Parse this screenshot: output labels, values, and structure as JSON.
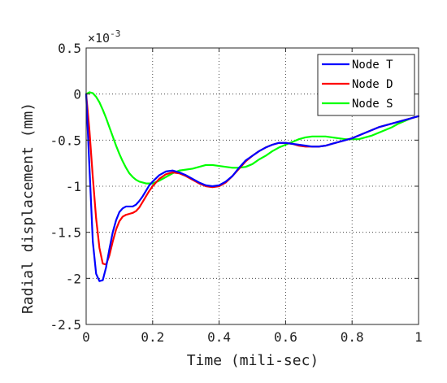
{
  "chart_data": {
    "type": "line",
    "title": "",
    "xlabel": "Time (mili-sec)",
    "ylabel": "Radial displacement (mm)",
    "y_exponent": {
      "base": "×10",
      "power": "-3"
    },
    "xlim": [
      0,
      1
    ],
    "ylim": [
      -2.5,
      0.5
    ],
    "x_ticks": [
      0,
      0.2,
      0.4,
      0.6,
      0.8,
      1
    ],
    "x_tick_labels": [
      "0",
      "0.2",
      "0.4",
      "0.6",
      "0.8",
      "1"
    ],
    "y_ticks": [
      0.5,
      0,
      -0.5,
      -1,
      -1.5,
      -2,
      -2.5
    ],
    "y_tick_labels": [
      "0.5",
      "0",
      "-0.5",
      "-1",
      "-1.5",
      "-2",
      "-2.5"
    ],
    "grid": true,
    "grid_style": "dotted",
    "legend_position": "top-right",
    "x": [
      0,
      0.01,
      0.02,
      0.03,
      0.04,
      0.05,
      0.06,
      0.07,
      0.08,
      0.09,
      0.1,
      0.11,
      0.12,
      0.13,
      0.14,
      0.15,
      0.16,
      0.17,
      0.18,
      0.19,
      0.2,
      0.22,
      0.24,
      0.26,
      0.28,
      0.3,
      0.32,
      0.34,
      0.36,
      0.38,
      0.4,
      0.42,
      0.44,
      0.46,
      0.48,
      0.5,
      0.52,
      0.54,
      0.56,
      0.58,
      0.6,
      0.62,
      0.64,
      0.66,
      0.68,
      0.7,
      0.72,
      0.74,
      0.76,
      0.78,
      0.8,
      0.82,
      0.84,
      0.86,
      0.88,
      0.9,
      0.92,
      0.94,
      0.96,
      0.98,
      1
    ],
    "series": [
      {
        "name": "Node T",
        "color": "#0000ff",
        "values": [
          0,
          -0.8,
          -1.6,
          -1.95,
          -2.03,
          -2.02,
          -1.88,
          -1.68,
          -1.5,
          -1.37,
          -1.28,
          -1.24,
          -1.22,
          -1.22,
          -1.22,
          -1.2,
          -1.16,
          -1.11,
          -1.05,
          -0.99,
          -0.95,
          -0.88,
          -0.84,
          -0.83,
          -0.85,
          -0.88,
          -0.92,
          -0.96,
          -0.99,
          -1.0,
          -0.99,
          -0.95,
          -0.89,
          -0.8,
          -0.72,
          -0.67,
          -0.62,
          -0.58,
          -0.55,
          -0.53,
          -0.53,
          -0.54,
          -0.55,
          -0.56,
          -0.57,
          -0.57,
          -0.56,
          -0.54,
          -0.52,
          -0.5,
          -0.48,
          -0.45,
          -0.42,
          -0.39,
          -0.36,
          -0.34,
          -0.32,
          -0.3,
          -0.28,
          -0.26,
          -0.24
        ]
      },
      {
        "name": "Node D",
        "color": "#ff0000",
        "values": [
          0,
          -0.4,
          -0.9,
          -1.35,
          -1.67,
          -1.84,
          -1.85,
          -1.75,
          -1.6,
          -1.47,
          -1.38,
          -1.33,
          -1.31,
          -1.3,
          -1.29,
          -1.27,
          -1.23,
          -1.17,
          -1.11,
          -1.05,
          -1.0,
          -0.92,
          -0.87,
          -0.85,
          -0.86,
          -0.89,
          -0.93,
          -0.97,
          -1.0,
          -1.01,
          -1.0,
          -0.96,
          -0.89,
          -0.81,
          -0.73,
          -0.67,
          -0.62,
          -0.58,
          -0.55,
          -0.53,
          -0.53,
          -0.54,
          -0.56,
          -0.57,
          -0.57,
          -0.57,
          -0.56,
          -0.54,
          -0.52,
          -0.5,
          -0.48,
          -0.45,
          -0.42,
          -0.39,
          -0.36,
          -0.34,
          -0.32,
          -0.3,
          -0.28,
          -0.26,
          -0.24
        ]
      },
      {
        "name": "Node S",
        "color": "#00ff00",
        "values": [
          0,
          0.02,
          0.01,
          -0.03,
          -0.09,
          -0.17,
          -0.26,
          -0.36,
          -0.46,
          -0.56,
          -0.65,
          -0.73,
          -0.8,
          -0.86,
          -0.9,
          -0.93,
          -0.95,
          -0.96,
          -0.97,
          -0.97,
          -0.97,
          -0.94,
          -0.9,
          -0.86,
          -0.83,
          -0.82,
          -0.81,
          -0.79,
          -0.77,
          -0.77,
          -0.78,
          -0.79,
          -0.8,
          -0.8,
          -0.79,
          -0.76,
          -0.71,
          -0.67,
          -0.62,
          -0.58,
          -0.55,
          -0.52,
          -0.49,
          -0.47,
          -0.46,
          -0.46,
          -0.46,
          -0.47,
          -0.48,
          -0.49,
          -0.49,
          -0.49,
          -0.47,
          -0.45,
          -0.42,
          -0.39,
          -0.36,
          -0.32,
          -0.29,
          -0.26,
          -0.24
        ]
      }
    ]
  }
}
